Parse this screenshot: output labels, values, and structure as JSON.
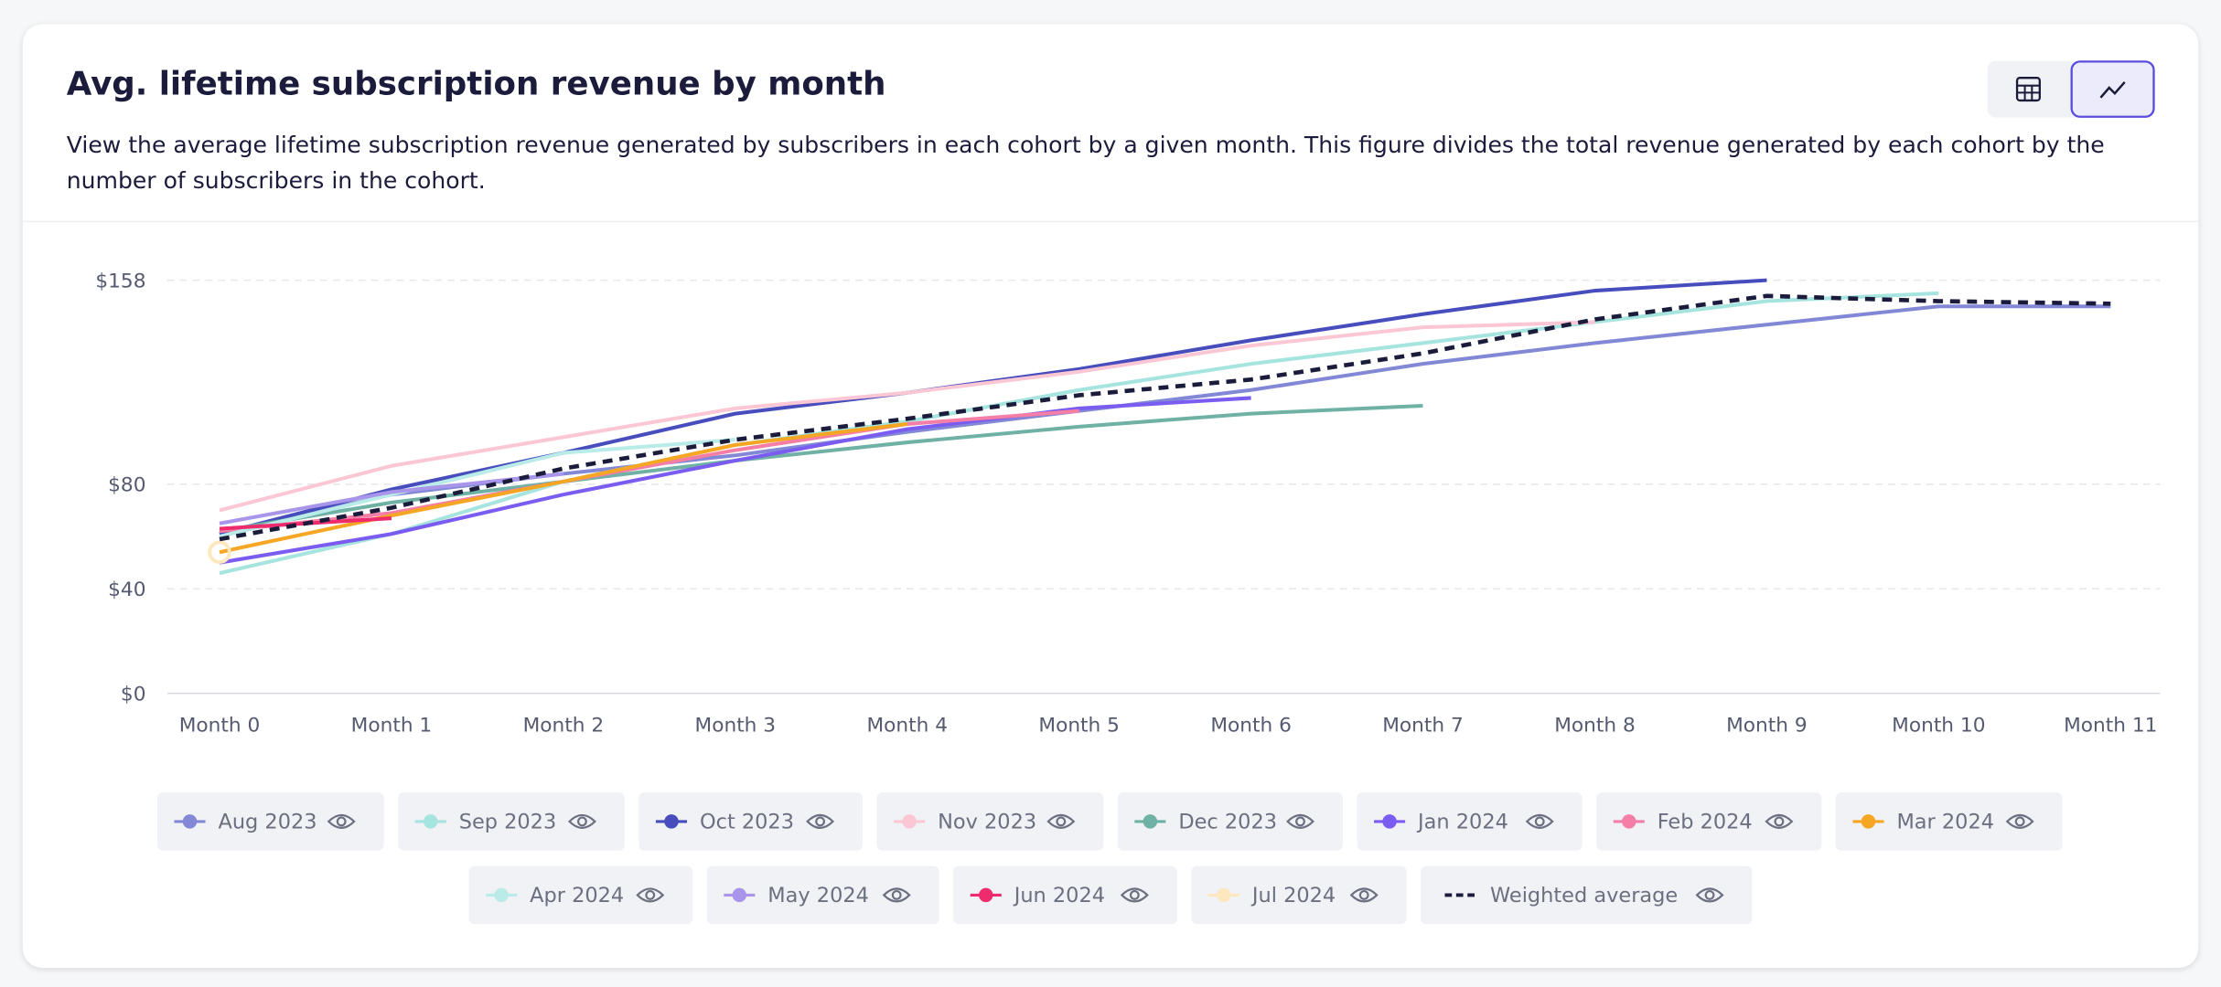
{
  "chart_data": {
    "type": "line",
    "title": "Avg. lifetime subscription revenue by month",
    "subtitle": "View the average lifetime subscription revenue generated by subscribers in each cohort by a given month. This figure divides the total revenue generated by each cohort by the number of subscribers in the cohort.",
    "categories": [
      "Month 0",
      "Month 1",
      "Month 2",
      "Month 3",
      "Month 4",
      "Month 5",
      "Month 6",
      "Month 7",
      "Month 8",
      "Month 9",
      "Month 10",
      "Month 11"
    ],
    "ylim": [
      0,
      158
    ],
    "yticks": [
      {
        "value": 0,
        "label": "$0"
      },
      {
        "value": 40,
        "label": "$40"
      },
      {
        "value": 80,
        "label": "$80"
      },
      {
        "value": 158,
        "label": "$158"
      }
    ],
    "grid": true,
    "series": [
      {
        "name": "Aug 2023",
        "color": "#8288d6",
        "values": [
          61,
          76,
          84,
          91,
          100,
          108,
          116,
          126,
          134,
          141,
          148,
          148
        ]
      },
      {
        "name": "Sep 2023",
        "color": "#a6e4df",
        "values": [
          46,
          61,
          81,
          95,
          104,
          116,
          126,
          134,
          142,
          150,
          153,
          null
        ]
      },
      {
        "name": "Oct 2023",
        "color": "#474dbd",
        "values": [
          61,
          78,
          92,
          107,
          115,
          124,
          135,
          145,
          154,
          158,
          null,
          null
        ]
      },
      {
        "name": "Nov 2023",
        "color": "#fbc7d4",
        "values": [
          70,
          87,
          98,
          109,
          115,
          123,
          133,
          140,
          142,
          null,
          null,
          null
        ]
      },
      {
        "name": "Dec 2023",
        "color": "#6fb2a5",
        "values": [
          62,
          73,
          81,
          89,
          96,
          102,
          107,
          110,
          null,
          null,
          null,
          null
        ]
      },
      {
        "name": "Jan 2024",
        "color": "#7a5cf0",
        "values": [
          50,
          61,
          76,
          89,
          101,
          109,
          113,
          null,
          null,
          null,
          null,
          null
        ]
      },
      {
        "name": "Feb 2024",
        "color": "#f47ea5",
        "values": [
          62,
          69,
          81,
          93,
          103,
          108,
          null,
          null,
          null,
          null,
          null,
          null
        ]
      },
      {
        "name": "Mar 2024",
        "color": "#f5a623",
        "values": [
          54,
          68,
          81,
          95,
          103,
          null,
          null,
          null,
          null,
          null,
          null,
          null
        ]
      },
      {
        "name": "Apr 2024",
        "color": "#b9ece8",
        "values": [
          60,
          76,
          92,
          97,
          null,
          null,
          null,
          null,
          null,
          null,
          null,
          null
        ]
      },
      {
        "name": "May 2024",
        "color": "#a996ea",
        "values": [
          65,
          77,
          84,
          null,
          null,
          null,
          null,
          null,
          null,
          null,
          null,
          null
        ]
      },
      {
        "name": "Jun 2024",
        "color": "#ee2b6c",
        "values": [
          63,
          67,
          null,
          null,
          null,
          null,
          null,
          null,
          null,
          null,
          null,
          null
        ]
      },
      {
        "name": "Jul 2024",
        "color": "#fde7bf",
        "values": [
          54,
          null,
          null,
          null,
          null,
          null,
          null,
          null,
          null,
          null,
          null,
          null
        ]
      },
      {
        "name": "Weighted average",
        "color": "#1b1b3c",
        "dashed": true,
        "values": [
          59,
          71,
          86,
          97,
          105,
          114,
          120,
          130,
          143,
          152,
          150,
          149
        ]
      }
    ]
  }
}
